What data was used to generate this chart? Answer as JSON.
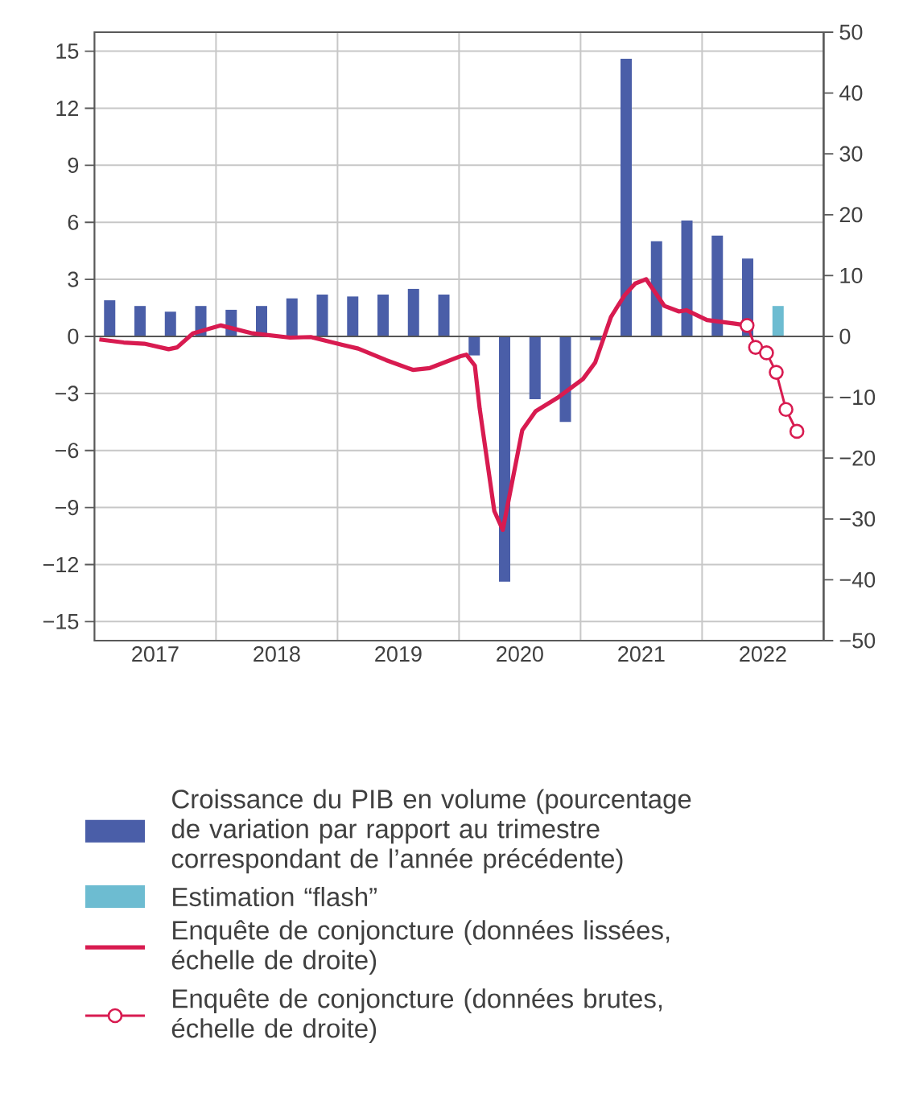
{
  "chart_data": {
    "type": "bar",
    "xlim": [
      2017,
      2023
    ],
    "ylim": [
      -16,
      16
    ],
    "y2lim": [
      -50,
      50
    ],
    "xticks": [
      {
        "value": 2018,
        "label": null
      },
      {
        "value": 2019,
        "label": null
      },
      {
        "value": 2020,
        "label": null
      },
      {
        "value": 2021,
        "label": null
      },
      {
        "value": 2022,
        "label": null
      },
      {
        "value": 2017.5,
        "label": "2017"
      },
      {
        "value": 2018.5,
        "label": "2018"
      },
      {
        "value": 2019.5,
        "label": "2019"
      },
      {
        "value": 2020.5,
        "label": "2020"
      },
      {
        "value": 2021.5,
        "label": "2021"
      },
      {
        "value": 2022.5,
        "label": "2022"
      }
    ],
    "yticks": [
      {
        "value": -15,
        "label": "−15"
      },
      {
        "value": -12,
        "label": "−12"
      },
      {
        "value": -9,
        "label": "−9"
      },
      {
        "value": -6,
        "label": "−6"
      },
      {
        "value": -3,
        "label": "−3"
      },
      0,
      3,
      6,
      9,
      12,
      15
    ],
    "y2ticks": [
      {
        "value": -50,
        "label": "−50"
      },
      {
        "value": -40,
        "label": "−40"
      },
      {
        "value": -30,
        "label": "−30"
      },
      {
        "value": -20,
        "label": "−20"
      },
      {
        "value": -10,
        "label": "−10"
      },
      0,
      10,
      20,
      30,
      40,
      50
    ],
    "grid": true,
    "legend": "bottom",
    "ref_lines": [
      {
        "axis": "y",
        "value": 0,
        "color": "#555555"
      }
    ],
    "series": [
      {
        "name": "Croissance du PIB en volume (pourcentage de variation par rapport au trimestre correspondant de l’année précédente)",
        "color": "#4a5ea8",
        "x": [
          2017.125,
          2017.375,
          2017.625,
          2017.875,
          2018.125,
          2018.375,
          2018.625,
          2018.875,
          2019.125,
          2019.375,
          2019.625,
          2019.875,
          2020.125,
          2020.375,
          2020.625,
          2020.875,
          2021.125,
          2021.375,
          2021.625,
          2021.875,
          2022.125,
          2022.375
        ],
        "values": [
          1.9,
          1.6,
          1.3,
          1.6,
          1.4,
          1.6,
          2.0,
          2.2,
          2.1,
          2.2,
          2.5,
          2.2,
          -1.0,
          -12.9,
          -3.3,
          -4.5,
          -0.2,
          14.6,
          5.0,
          6.1,
          5.3,
          4.1
        ]
      },
      {
        "name": "Estimation “flash”",
        "color": "#6dbcd1",
        "x": [
          2022.625
        ],
        "values": [
          1.6
        ]
      },
      {
        "name": "Enquête de conjoncture (données lissées, échelle de droite)",
        "type": "line",
        "axis": "y2",
        "color": "#d81b50",
        "marker": "none",
        "x": [
          2017.04,
          2017.24,
          2017.41,
          2017.61,
          2017.68,
          2017.81,
          2018.04,
          2018.3,
          2018.61,
          2018.78,
          2019.04,
          2019.17,
          2019.4,
          2019.62,
          2019.76,
          2020.02,
          2020.06,
          2020.13,
          2020.17,
          2020.29,
          2020.36,
          2020.52,
          2020.63,
          2020.81,
          2021.02,
          2021.12,
          2021.25,
          2021.36,
          2021.45,
          2021.54,
          2021.69,
          2021.81,
          2021.87,
          2022.04,
          2022.27,
          2022.37
        ],
        "values": [
          -0.5,
          -1.0,
          -1.2,
          -2.1,
          -1.8,
          0.5,
          1.8,
          0.5,
          -0.2,
          -0.1,
          -1.4,
          -2.0,
          -3.9,
          -5.5,
          -5.2,
          -3.2,
          -3.0,
          -4.8,
          -11.9,
          -28.7,
          -31.8,
          -15.4,
          -12.3,
          -10.1,
          -7.0,
          -4.3,
          3.2,
          6.7,
          8.7,
          9.4,
          5.0,
          4.1,
          4.3,
          2.7,
          2.1,
          1.8
        ]
      },
      {
        "name": "Enquête de conjoncture (données brutes, échelle de droite)",
        "type": "line",
        "axis": "y2",
        "color": "#d81b50",
        "marker": "circle",
        "x": [
          2022.37,
          2022.44,
          2022.53,
          2022.61,
          2022.69,
          2022.78
        ],
        "values": [
          1.8,
          -1.8,
          -2.7,
          -5.9,
          -12.0,
          -15.6
        ]
      }
    ]
  }
}
